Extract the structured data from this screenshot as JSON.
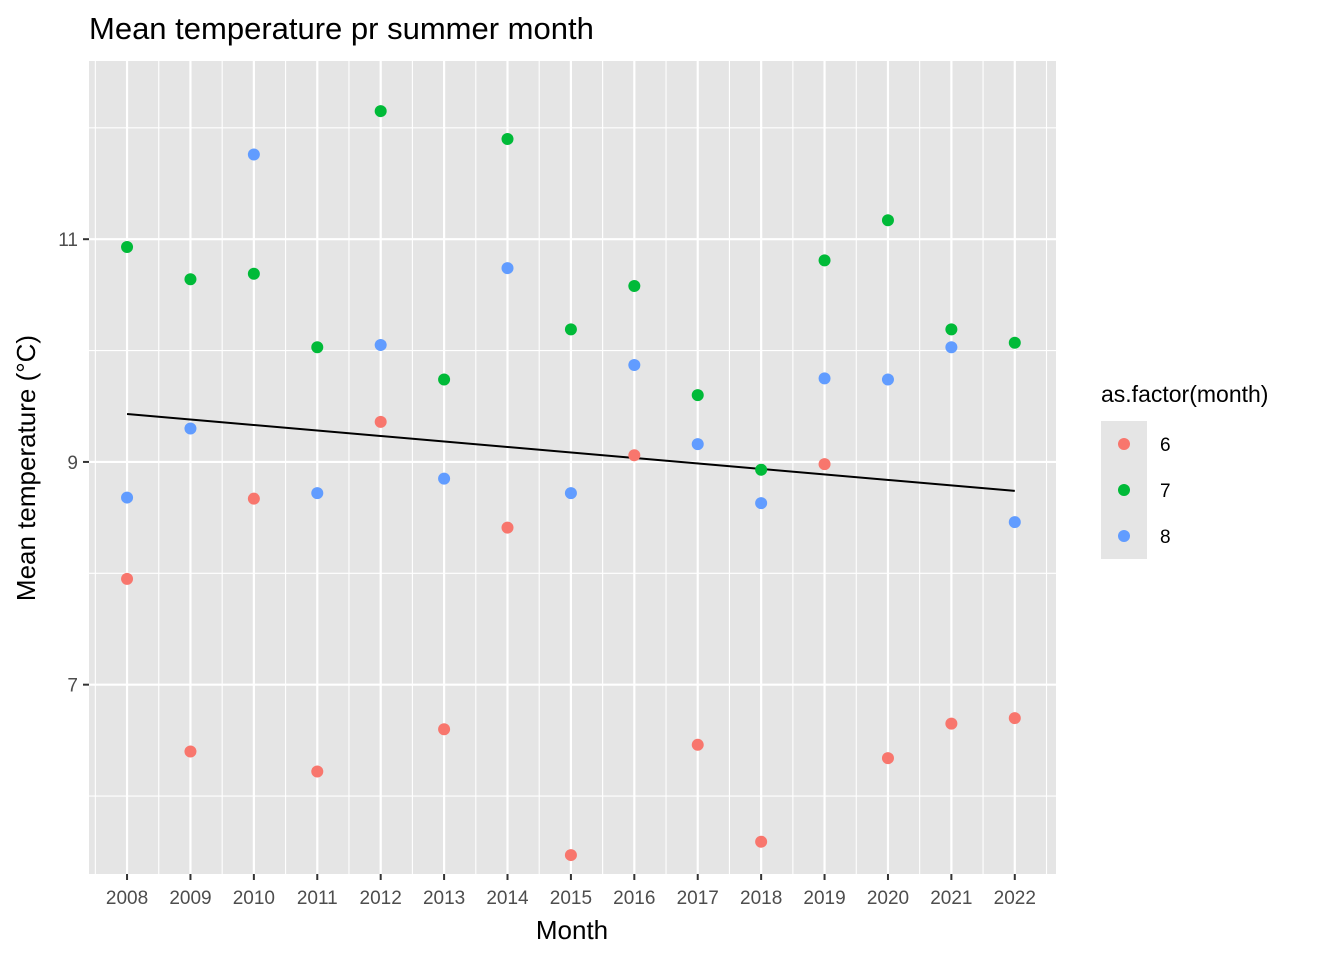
{
  "chart_data": {
    "type": "scatter",
    "title": "Mean temperature pr summer month",
    "xlabel": "Month",
    "ylabel": "Mean temperature (°C)",
    "x": [
      2008,
      2009,
      2010,
      2011,
      2012,
      2013,
      2014,
      2015,
      2016,
      2017,
      2018,
      2019,
      2020,
      2021,
      2022
    ],
    "xlim": [
      2007.4,
      2022.65
    ],
    "ylim": [
      5.3,
      12.6
    ],
    "y_ticks": [
      7,
      9,
      11
    ],
    "grid": true,
    "legend": {
      "title": "as.factor(month)",
      "placement": "right",
      "entries": [
        "6",
        "7",
        "8"
      ]
    },
    "series": [
      {
        "name": "6",
        "color": "#F8766D",
        "values": [
          7.95,
          6.4,
          8.67,
          6.22,
          9.36,
          6.6,
          8.41,
          5.47,
          9.06,
          6.46,
          5.59,
          8.98,
          6.34,
          6.65,
          6.7
        ]
      },
      {
        "name": "7",
        "color": "#00BA38",
        "values": [
          10.93,
          10.64,
          10.69,
          10.03,
          12.15,
          9.74,
          11.9,
          10.19,
          10.58,
          9.6,
          8.93,
          10.81,
          11.17,
          10.19,
          10.07
        ]
      },
      {
        "name": "8",
        "color": "#619CFF",
        "values": [
          8.68,
          9.3,
          11.76,
          8.72,
          10.05,
          8.85,
          10.74,
          8.72,
          9.87,
          9.16,
          8.63,
          9.75,
          9.74,
          10.03,
          8.46
        ]
      }
    ],
    "trend_line": {
      "color": "#000000",
      "x": [
        2008,
        2022
      ],
      "y": [
        9.43,
        8.74
      ]
    },
    "colors": {
      "panel_background": "#E5E5E5",
      "grid": "#FFFFFF"
    }
  }
}
